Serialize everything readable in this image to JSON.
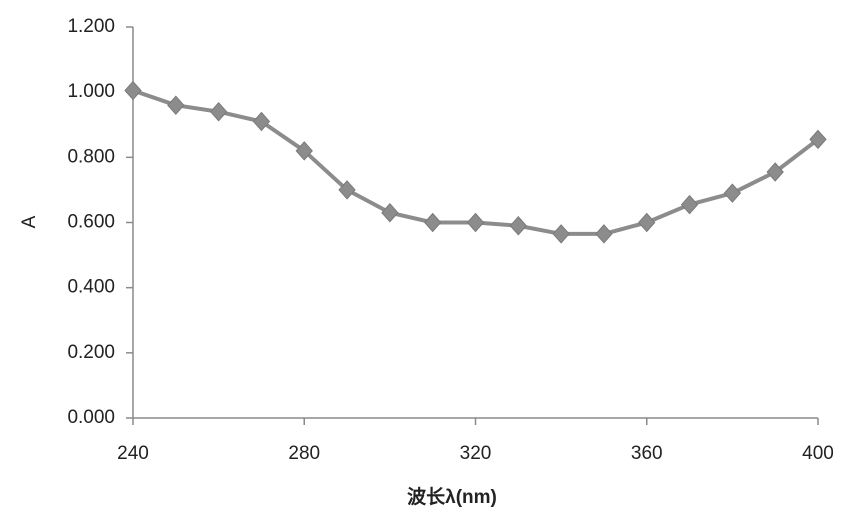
{
  "chart_data": {
    "type": "line",
    "x_label": "波长λ(nm)",
    "y_label": "A",
    "x": [
      240,
      250,
      260,
      270,
      280,
      290,
      300,
      310,
      320,
      330,
      340,
      350,
      360,
      370,
      380,
      390,
      400
    ],
    "values": [
      1.005,
      0.96,
      0.94,
      0.91,
      0.82,
      0.7,
      0.63,
      0.6,
      0.6,
      0.59,
      0.565,
      0.565,
      0.6,
      0.655,
      0.69,
      0.755,
      0.855
    ],
    "color": "#8c8c8c",
    "marker": "diamond",
    "xlim": [
      240,
      400
    ],
    "xticks": [
      240,
      280,
      320,
      360,
      400
    ],
    "ylim": [
      0,
      1.2
    ],
    "yticks": [
      {
        "value": 0,
        "label": "0.000"
      },
      {
        "value": 0.2,
        "label": "0.200"
      },
      {
        "value": 0.4,
        "label": "0.400"
      },
      {
        "value": 0.6,
        "label": "0.600"
      },
      {
        "value": 0.8,
        "label": "0.800"
      },
      {
        "value": 1.0,
        "label": "1.000"
      },
      {
        "value": 1.2,
        "label": "1.200"
      }
    ],
    "grid": false
  }
}
